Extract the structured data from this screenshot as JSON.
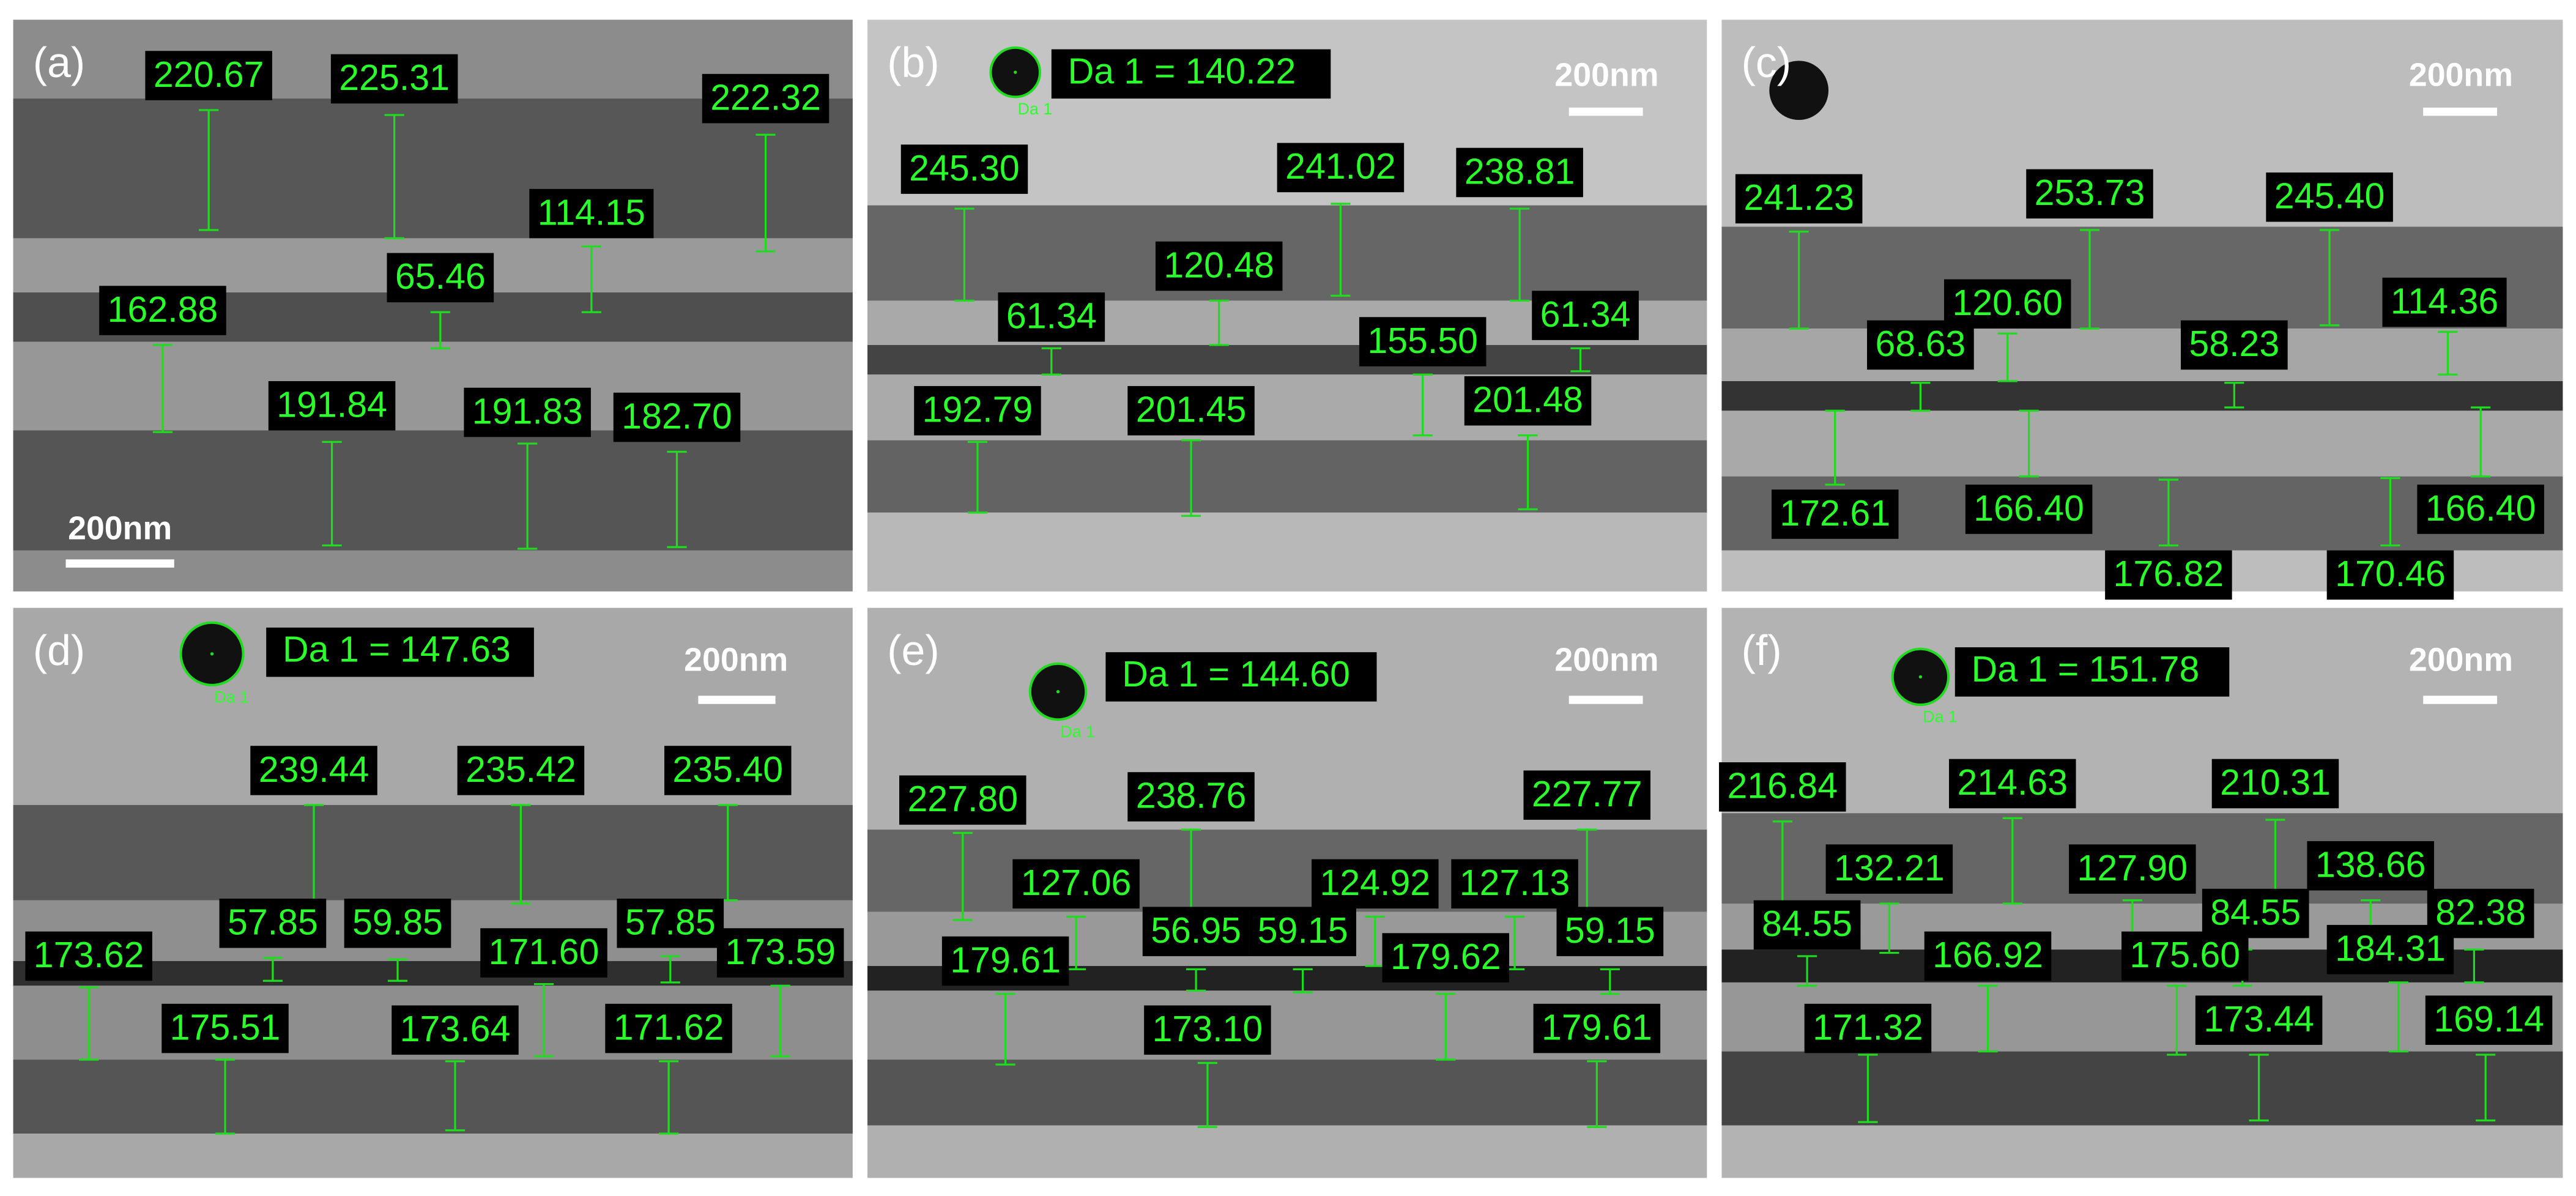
{
  "panels": [
    {
      "label": "(a)",
      "scale_bar": "200nm",
      "measurements": [
        "220.67",
        "225.31",
        "222.32",
        "114.15",
        "65.46",
        "162.88",
        "191.84",
        "191.83",
        "182.70"
      ]
    },
    {
      "label": "(b)",
      "scale_bar": "200nm",
      "diameter_label": "Da 1 = 140.22",
      "diameter_tag": "Da 1",
      "measurements": [
        "245.30",
        "241.02",
        "238.81",
        "120.48",
        "61.34",
        "155.50",
        "61.34",
        "192.79",
        "201.45",
        "201.48"
      ]
    },
    {
      "label": "(c)",
      "scale_bar": "200nm",
      "measurements": [
        "241.23",
        "253.73",
        "245.40",
        "120.60",
        "114.36",
        "68.63",
        "58.23",
        "172.61",
        "166.40",
        "166.40",
        "176.82",
        "170.46"
      ]
    },
    {
      "label": "(d)",
      "scale_bar": "200nm",
      "diameter_label": "Da 1 = 147.63",
      "diameter_tag": "Da 1",
      "measurements": [
        "239.44",
        "235.42",
        "235.40",
        "57.85",
        "59.85",
        "57.85",
        "171.60",
        "173.62",
        "173.59",
        "175.51",
        "173.64",
        "171.62"
      ]
    },
    {
      "label": "(e)",
      "scale_bar": "200nm",
      "diameter_label": "Da 1 = 144.60",
      "diameter_tag": "Da 1",
      "measurements": [
        "227.80",
        "238.76",
        "227.77",
        "127.06",
        "124.92",
        "127.13",
        "56.95",
        "59.15",
        "59.15",
        "179.61",
        "179.62",
        "173.10",
        "179.61"
      ]
    },
    {
      "label": "(f)",
      "scale_bar": "200nm",
      "diameter_label": "Da 1 = 151.78",
      "diameter_tag": "Da 1",
      "measurements": [
        "216.84",
        "214.63",
        "210.31",
        "132.21",
        "127.90",
        "138.66",
        "84.55",
        "84.55",
        "82.38",
        "166.92",
        "175.60",
        "184.31",
        "171.32",
        "173.44",
        "169.14"
      ]
    }
  ]
}
